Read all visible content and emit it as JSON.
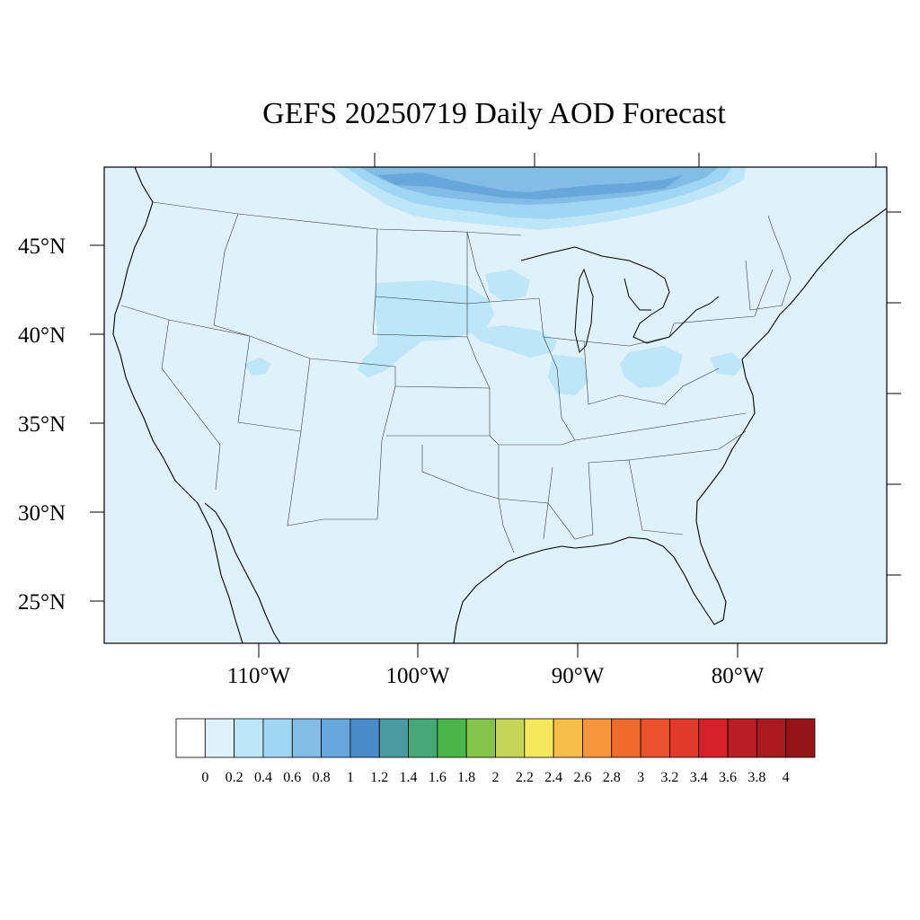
{
  "title": "GEFS 20250719 Daily AOD Forecast",
  "map": {
    "projection": "Lambert Conformal (CONUS)",
    "background_fill": "#dff1fb",
    "lat_labels": [
      "45°N",
      "40°N",
      "35°N",
      "30°N",
      "25°N"
    ],
    "lon_labels": [
      "110°W",
      "100°W",
      "90°W",
      "80°W"
    ],
    "features": [
      "coastlines",
      "us-state-borders",
      "great-lakes"
    ]
  },
  "colorbar": {
    "labels": [
      "0",
      "0.2",
      "0.4",
      "0.6",
      "0.8",
      "1",
      "1.2",
      "1.4",
      "1.6",
      "1.8",
      "2",
      "2.2",
      "2.4",
      "2.6",
      "2.8",
      "3",
      "3.2",
      "3.4",
      "3.6",
      "3.8",
      "4"
    ],
    "colors": [
      "#ffffff",
      "#dff1fb",
      "#bde6f8",
      "#a0d6f3",
      "#83bde6",
      "#68a7db",
      "#4a8bc9",
      "#4a9b9f",
      "#47a676",
      "#4cb549",
      "#86c34d",
      "#c4d658",
      "#f5e85c",
      "#f7be4a",
      "#f6963b",
      "#f26b2e",
      "#ea522d",
      "#e03a2b",
      "#d42129",
      "#b91e24",
      "#a81a20",
      "#951419"
    ]
  },
  "aod_features": [
    {
      "region": "southern Canada (north of Montana to Great Lakes)",
      "aod": "0.6-1.0"
    },
    {
      "region": "South Dakota / Nebraska / Iowa",
      "aod": "0.2-0.4"
    },
    {
      "region": "Ohio / Indiana / Illinois",
      "aod": "0.2-0.4"
    },
    {
      "region": "Utah (Great Salt Lake area)",
      "aod": "0.2-0.4"
    },
    {
      "region": "elsewhere CONUS",
      "aod": "0-0.2"
    }
  ]
}
